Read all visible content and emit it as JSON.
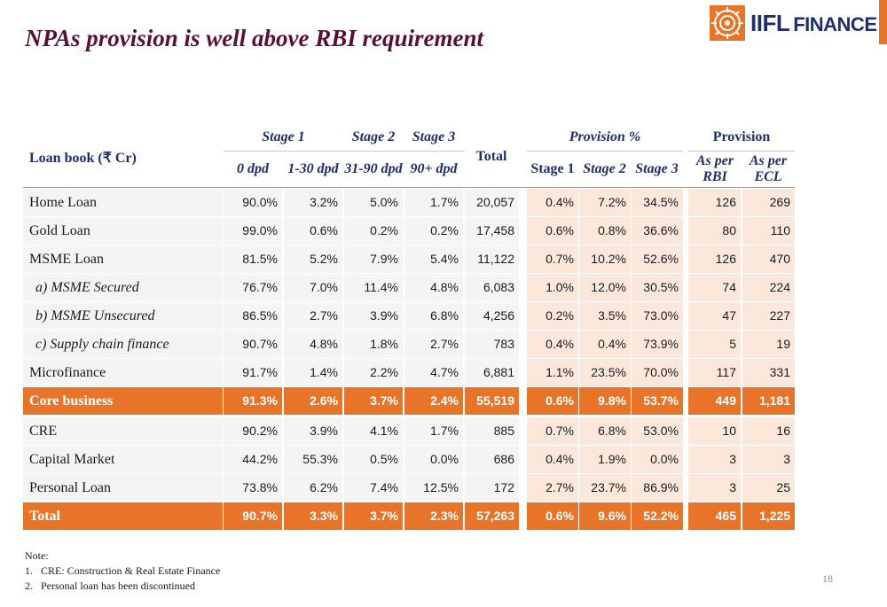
{
  "title": "NPAs provision is well above RBI requirement",
  "logo": {
    "brand": "IIFL",
    "sub": "FINANCE"
  },
  "header": {
    "loan_book": "Loan book (₹ Cr)",
    "stage1": "Stage 1",
    "stage2": "Stage 2",
    "stage3": "Stage 3",
    "total": "Total",
    "provision_pct": "Provision %",
    "provision": "Provision",
    "sub": {
      "dpd0": "0 dpd",
      "dpd1_30": "1-30 dpd",
      "dpd31_90": "31-90 dpd",
      "dpd90": "90+ dpd",
      "p_stage1": "Stage 1",
      "p_stage2": "Stage 2",
      "p_stage3": "Stage 3",
      "rbi_line1": "As per",
      "rbi_line2": "RBI",
      "ecl_line1": "As per",
      "ecl_line2": "ECL"
    }
  },
  "rows": [
    {
      "label": "Home Loan",
      "cells": [
        "90.0%",
        "3.2%",
        "5.0%",
        "1.7%",
        "20,057",
        "0.4%",
        "7.2%",
        "34.5%",
        "126",
        "269"
      ]
    },
    {
      "label": "Gold Loan",
      "cells": [
        "99.0%",
        "0.6%",
        "0.2%",
        "0.2%",
        "17,458",
        "0.6%",
        "0.8%",
        "36.6%",
        "80",
        "110"
      ]
    },
    {
      "label": "MSME Loan",
      "cells": [
        "81.5%",
        "5.2%",
        "7.9%",
        "5.4%",
        "11,122",
        "0.7%",
        "10.2%",
        "52.6%",
        "126",
        "470"
      ]
    },
    {
      "label": "a) MSME Secured",
      "cells": [
        "76.7%",
        "7.0%",
        "11.4%",
        "4.8%",
        "6,083",
        "1.0%",
        "12.0%",
        "30.5%",
        "74",
        "224"
      ]
    },
    {
      "label": "b) MSME Unsecured",
      "cells": [
        "86.5%",
        "2.7%",
        "3.9%",
        "6.8%",
        "4,256",
        "0.2%",
        "3.5%",
        "73.0%",
        "47",
        "227"
      ]
    },
    {
      "label": "c) Supply chain finance",
      "cells": [
        "90.7%",
        "4.8%",
        "1.8%",
        "2.7%",
        "783",
        "0.4%",
        "0.4%",
        "73.9%",
        "5",
        "19"
      ]
    },
    {
      "label": "Microfinance",
      "cells": [
        "91.7%",
        "1.4%",
        "2.2%",
        "4.7%",
        "6,881",
        "1.1%",
        "23.5%",
        "70.0%",
        "117",
        "331"
      ]
    },
    {
      "label": "Core business",
      "cells": [
        "91.3%",
        "2.6%",
        "3.7%",
        "2.4%",
        "55,519",
        "0.6%",
        "9.8%",
        "53.7%",
        "449",
        "1,181"
      ]
    },
    {
      "label": "CRE",
      "cells": [
        "90.2%",
        "3.9%",
        "4.1%",
        "1.7%",
        "885",
        "0.7%",
        "6.8%",
        "53.0%",
        "10",
        "16"
      ]
    },
    {
      "label": "Capital Market",
      "cells": [
        "44.2%",
        "55.3%",
        "0.5%",
        "0.0%",
        "686",
        "0.4%",
        "1.9%",
        "0.0%",
        "3",
        "3"
      ]
    },
    {
      "label": "Personal Loan",
      "cells": [
        "73.8%",
        "6.2%",
        "7.4%",
        "12.5%",
        "172",
        "2.7%",
        "23.7%",
        "86.9%",
        "3",
        "25"
      ]
    },
    {
      "label": "Total",
      "cells": [
        "90.7%",
        "3.3%",
        "3.7%",
        "2.3%",
        "57,263",
        "0.6%",
        "9.6%",
        "52.2%",
        "465",
        "1,225"
      ]
    }
  ],
  "notes": {
    "heading": "Note:",
    "items": [
      {
        "num": "1.",
        "text": "CRE: Construction & Real Estate Finance"
      },
      {
        "num": "2.",
        "text": "Personal loan has been discontinued"
      }
    ]
  },
  "page_number": "18",
  "colors": {
    "title": "#5a1035",
    "header": "#1f2f6e",
    "accent": "#e8742a",
    "provision_bg": "#fbe8db"
  }
}
